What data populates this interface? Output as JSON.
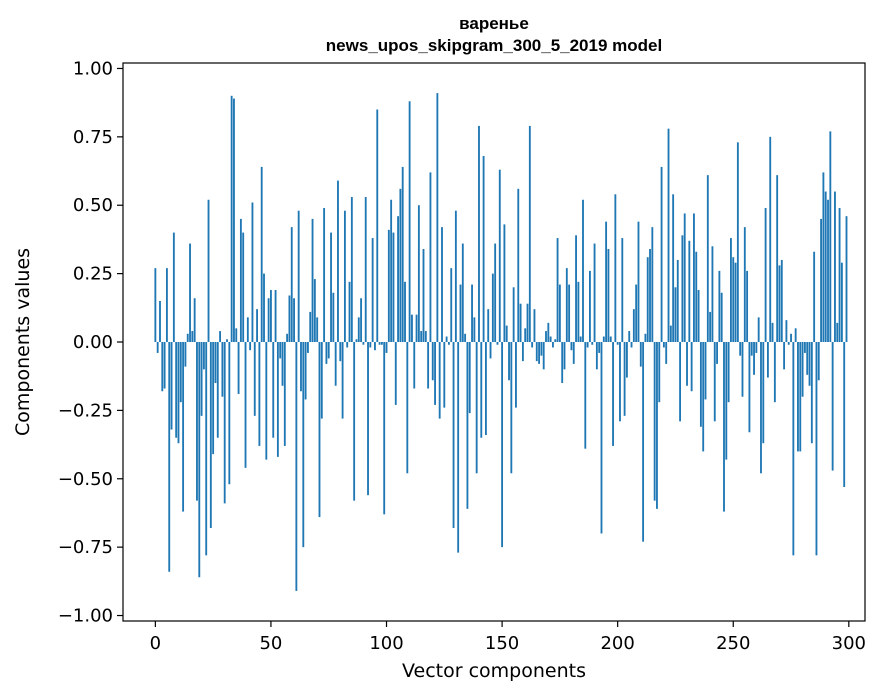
{
  "chart_data": {
    "type": "bar",
    "title_lines": [
      "варенье",
      "news_upos_skipgram_300_5_2019 model"
    ],
    "xlabel": "Vector components",
    "ylabel": "Components values",
    "xlim": [
      -14,
      307
    ],
    "ylim": [
      -1.02,
      1.02
    ],
    "x_ticks": [
      0,
      50,
      100,
      150,
      200,
      250,
      300
    ],
    "x_tick_labels": [
      "0",
      "50",
      "100",
      "150",
      "200",
      "250",
      "300"
    ],
    "y_ticks": [
      -1.0,
      -0.75,
      -0.5,
      -0.25,
      0.0,
      0.25,
      0.5,
      0.75,
      1.0
    ],
    "y_tick_labels": [
      "−1.00",
      "−0.75",
      "−0.50",
      "−0.25",
      "0.00",
      "0.25",
      "0.50",
      "0.75",
      "1.00"
    ],
    "grid": false,
    "bar_color": "#1f77b4",
    "series": [
      {
        "name": "варенье",
        "values": [
          0.27,
          -0.04,
          0.15,
          -0.18,
          -0.17,
          0.27,
          -0.84,
          -0.32,
          0.4,
          -0.35,
          -0.37,
          -0.22,
          -0.62,
          -0.09,
          0.03,
          0.36,
          0.04,
          0.16,
          -0.58,
          -0.86,
          -0.27,
          -0.1,
          -0.78,
          0.52,
          -0.68,
          -0.41,
          -0.15,
          -0.35,
          0.04,
          -0.2,
          -0.59,
          0.01,
          -0.52,
          0.9,
          0.89,
          0.05,
          -0.19,
          0.45,
          0.4,
          -0.46,
          0.09,
          -0.03,
          0.51,
          -0.27,
          0.12,
          -0.38,
          0.64,
          0.25,
          -0.43,
          0.16,
          0.19,
          -0.35,
          0.19,
          -0.42,
          -0.06,
          -0.16,
          -0.38,
          0.03,
          0.17,
          0.42,
          0.16,
          -0.91,
          0.48,
          -0.18,
          -0.75,
          -0.21,
          -0.04,
          0.11,
          0.45,
          0.23,
          0.09,
          -0.64,
          -0.28,
          0.49,
          -0.08,
          -0.06,
          0.4,
          0.18,
          -0.16,
          0.59,
          -0.07,
          -0.28,
          0.48,
          -0.02,
          0.22,
          0.53,
          -0.58,
          0.01,
          0.09,
          0.16,
          -0.01,
          0.53,
          -0.56,
          -0.02,
          0.38,
          -0.03,
          0.85,
          -0.01,
          -0.01,
          -0.63,
          -0.04,
          0.41,
          0.52,
          0.4,
          -0.23,
          0.46,
          0.56,
          0.64,
          0.22,
          -0.48,
          0.88,
          0.1,
          -0.17,
          0.1,
          0.5,
          0.04,
          0.34,
          0.04,
          -0.17,
          0.62,
          -0.14,
          -0.23,
          0.91,
          -0.28,
          0.42,
          -0.24,
          0.02,
          -0.01,
          0.27,
          -0.68,
          0.48,
          -0.77,
          0.21,
          0.36,
          0.03,
          -0.61,
          -0.26,
          0.21,
          0.09,
          -0.48,
          0.79,
          -0.35,
          0.68,
          -0.34,
          0.12,
          -0.06,
          0.25,
          0.36,
          -0.01,
          0.63,
          -0.75,
          0.43,
          0.06,
          -0.14,
          -0.48,
          0.2,
          -0.24,
          0.56,
          0.14,
          -0.07,
          0.05,
          0.14,
          0.79,
          -0.02,
          0.12,
          -0.07,
          -0.08,
          -0.05,
          -0.1,
          0.04,
          0.07,
          0.02,
          -0.02,
          0.01,
          0.38,
          0.21,
          -0.15,
          -0.1,
          0.27,
          0.21,
          -0.03,
          -0.08,
          0.39,
          0.22,
          0.02,
          0.52,
          -0.39,
          -0.02,
          0.26,
          -0.01,
          0.36,
          -0.1,
          -0.04,
          -0.7,
          0.02,
          0.44,
          0.34,
          0.02,
          -0.38,
          0.54,
          -0.01,
          -0.29,
          0.38,
          -0.27,
          -0.13,
          0.04,
          -0.02,
          0.12,
          0.21,
          0.44,
          -0.09,
          -0.73,
          0.03,
          0.31,
          0.34,
          0.42,
          -0.58,
          -0.61,
          -0.22,
          0.64,
          -0.02,
          -0.08,
          0.78,
          0.06,
          0.54,
          0.2,
          0.3,
          -0.29,
          0.39,
          0.47,
          -0.16,
          0.37,
          -0.18,
          0.47,
          0.33,
          0.19,
          -0.31,
          -0.4,
          -0.21,
          0.61,
          0.11,
          0.35,
          -0.29,
          -0.08,
          0.26,
          0.18,
          -0.62,
          -0.43,
          -0.22,
          0.38,
          0.31,
          0.29,
          0.73,
          -0.05,
          -0.2,
          0.42,
          0.26,
          -0.33,
          -0.05,
          -0.12,
          -0.04,
          0.09,
          -0.48,
          -0.37,
          0.49,
          -0.13,
          0.75,
          0.07,
          -0.22,
          0.61,
          0.28,
          0.3,
          -0.1,
          0.08,
          -0.01,
          0.03,
          -0.78,
          0.05,
          -0.4,
          -0.4,
          -0.2,
          -0.04,
          -0.12,
          -0.16,
          -0.37,
          0.33,
          -0.78,
          -0.14,
          0.45,
          0.62,
          0.55,
          0.52,
          0.77,
          -0.47,
          0.55,
          0.07,
          0.49,
          0.29,
          -0.53,
          0.46
        ]
      }
    ]
  }
}
